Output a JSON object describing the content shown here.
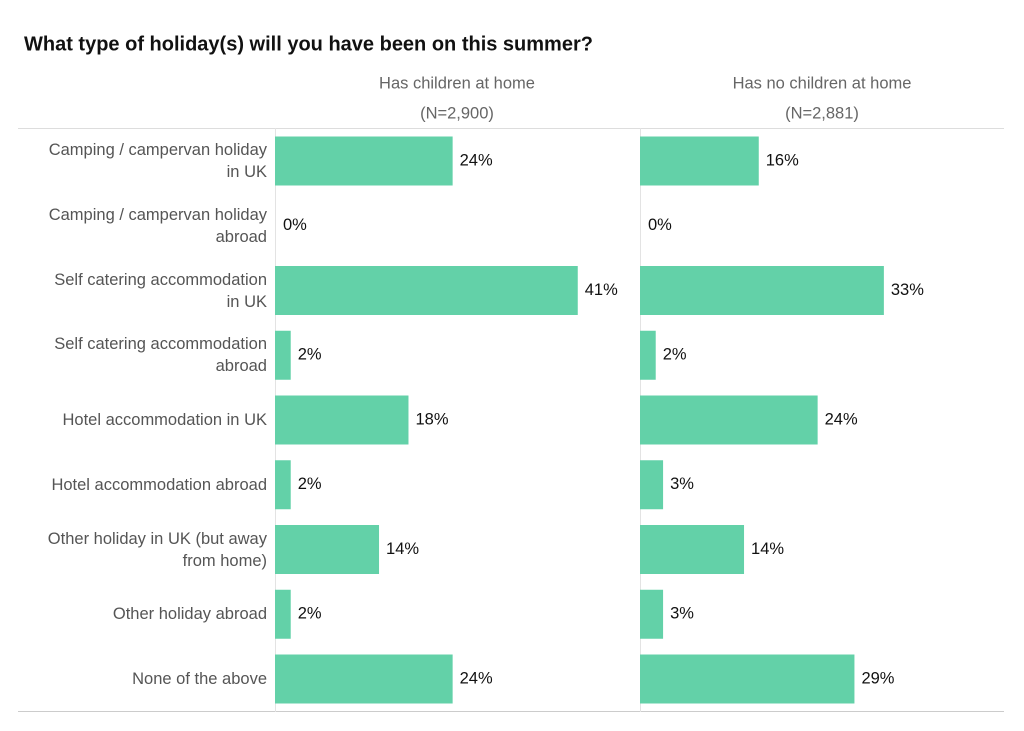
{
  "chart_data": {
    "type": "bar",
    "title": "What type of holiday(s) will you have been on this summer?",
    "categories": [
      "Camping / campervan holiday\nin UK",
      "Camping / campervan holiday\nabroad",
      "Self catering accommodation\nin UK",
      "Self catering accommodation\nabroad",
      "Hotel accommodation in UK",
      "Hotel accommodation abroad",
      "Other holiday in UK (but away\nfrom home)",
      "Other holiday abroad",
      "None of the above"
    ],
    "series": [
      {
        "name": "Has children at home",
        "subtitle": "(N=2,900)",
        "color": "#63d1a8",
        "values": [
          24,
          0,
          41,
          2,
          18,
          2,
          14,
          2,
          24
        ],
        "value_labels": [
          "24%",
          "0%",
          "41%",
          "2%",
          "18%",
          "2%",
          "14%",
          "2%",
          "24%"
        ]
      },
      {
        "name": "Has no children at home",
        "subtitle": "(N=2,881)",
        "color": "#63d1a8",
        "values": [
          16,
          0,
          33,
          2,
          24,
          3,
          14,
          3,
          29
        ],
        "value_labels": [
          "16%",
          "0%",
          "33%",
          "2%",
          "24%",
          "3%",
          "14%",
          "3%",
          "29%"
        ]
      }
    ]
  }
}
